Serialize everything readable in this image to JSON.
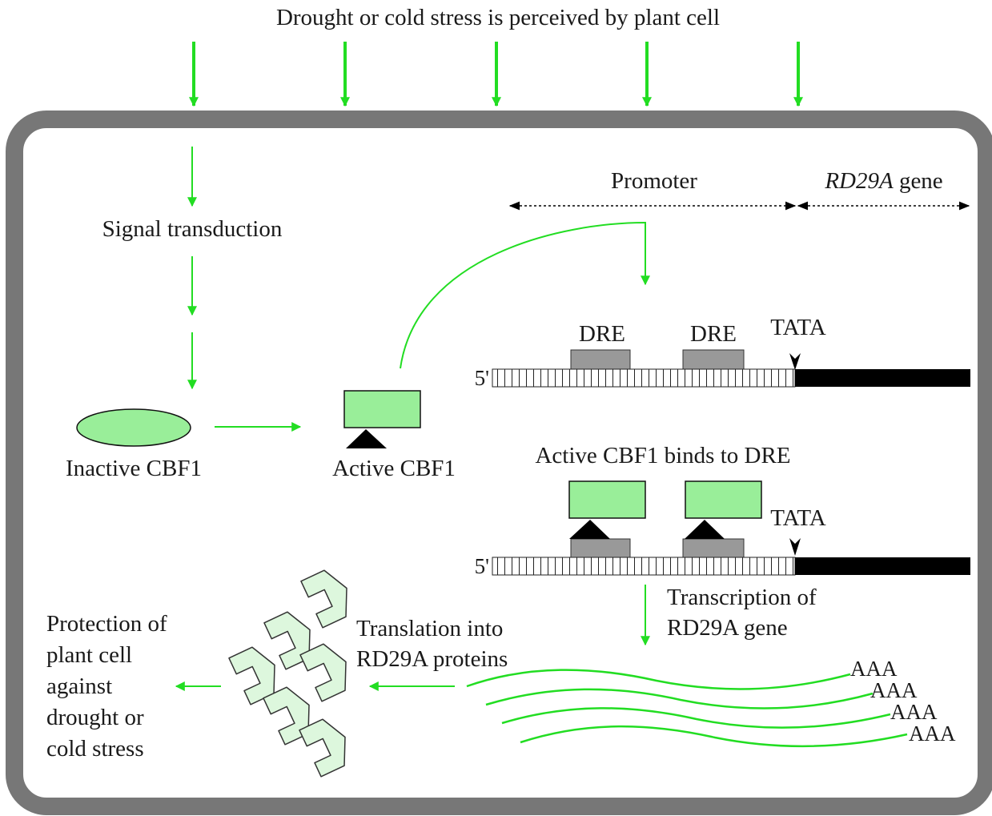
{
  "title": "Drought or cold stress is perceived by plant cell",
  "labels": {
    "signal_transduction": "Signal transduction",
    "inactive_cbf1": "Inactive CBF1",
    "active_cbf1": "Active CBF1",
    "promoter": "Promoter",
    "gene_name": "RD29A",
    "gene_suffix": " gene",
    "dre_1": "DRE",
    "dre_2": "DRE",
    "tata_1": "TATA",
    "tata_2": "TATA",
    "five_prime_1": "5'",
    "five_prime_2": "5'",
    "binds_caption": "Active CBF1 binds to DRE",
    "transcription_line1": "Transcription of",
    "transcription_line2": "RD29A gene",
    "translation_line1": "Translation into",
    "translation_line2": "RD29A proteins",
    "protection_lines": [
      "Protection of",
      "plant cell",
      "against",
      "drought or",
      "cold stress"
    ],
    "poly_a": [
      "AAA",
      "AAA",
      "AAA",
      "AAA"
    ]
  },
  "colors": {
    "arrow_green": "#22dd22",
    "protein_green": "#99ee99",
    "protein_light": "#ddf7dd",
    "cell_wall": "#777777",
    "dre_gray": "#999999",
    "gene_black": "#000000"
  }
}
